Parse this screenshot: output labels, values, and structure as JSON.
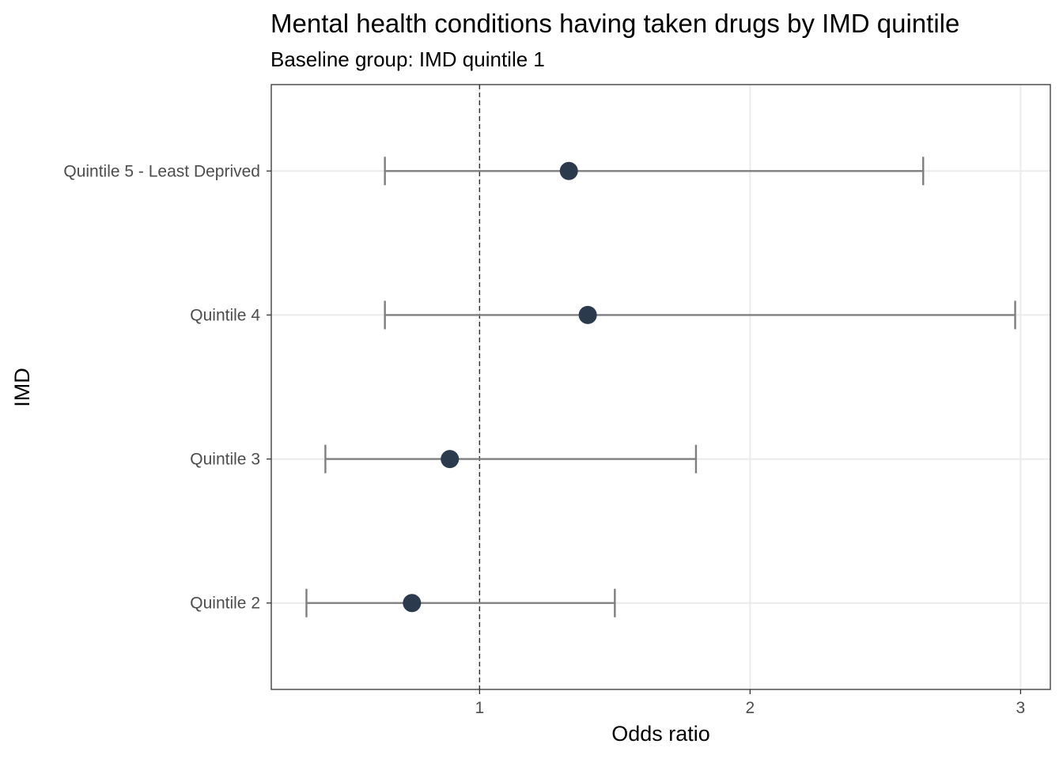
{
  "chart_data": {
    "type": "scatter",
    "subtype": "forest-plot",
    "title": "Mental health conditions having taken drugs by IMD quintile",
    "subtitle": "Baseline group: IMD quintile 1",
    "xlabel": "Odds ratio",
    "ylabel": "IMD",
    "xlim": [
      0.23,
      3.11
    ],
    "x_ticks": [
      1,
      2,
      3
    ],
    "x_tick_labels": [
      "1",
      "2",
      "3"
    ],
    "reference_line": 1,
    "categories": [
      "Quintile 2",
      "Quintile 3",
      "Quintile 4",
      "Quintile 5 - Least Deprived"
    ],
    "points": [
      {
        "category": "Quintile 2",
        "estimate": 0.75,
        "lower": 0.36,
        "upper": 1.5
      },
      {
        "category": "Quintile 3",
        "estimate": 0.89,
        "lower": 0.43,
        "upper": 1.8
      },
      {
        "category": "Quintile 4",
        "estimate": 1.4,
        "lower": 0.65,
        "upper": 2.98
      },
      {
        "category": "Quintile 5 - Least Deprived",
        "estimate": 1.33,
        "lower": 0.65,
        "upper": 2.64
      }
    ],
    "grid": true,
    "colors": {
      "point": "#2b3a4d",
      "errorbar": "#7f7f7f",
      "grid": "#ebebeb",
      "reference": "#333333",
      "panel_border": "#333333"
    }
  }
}
